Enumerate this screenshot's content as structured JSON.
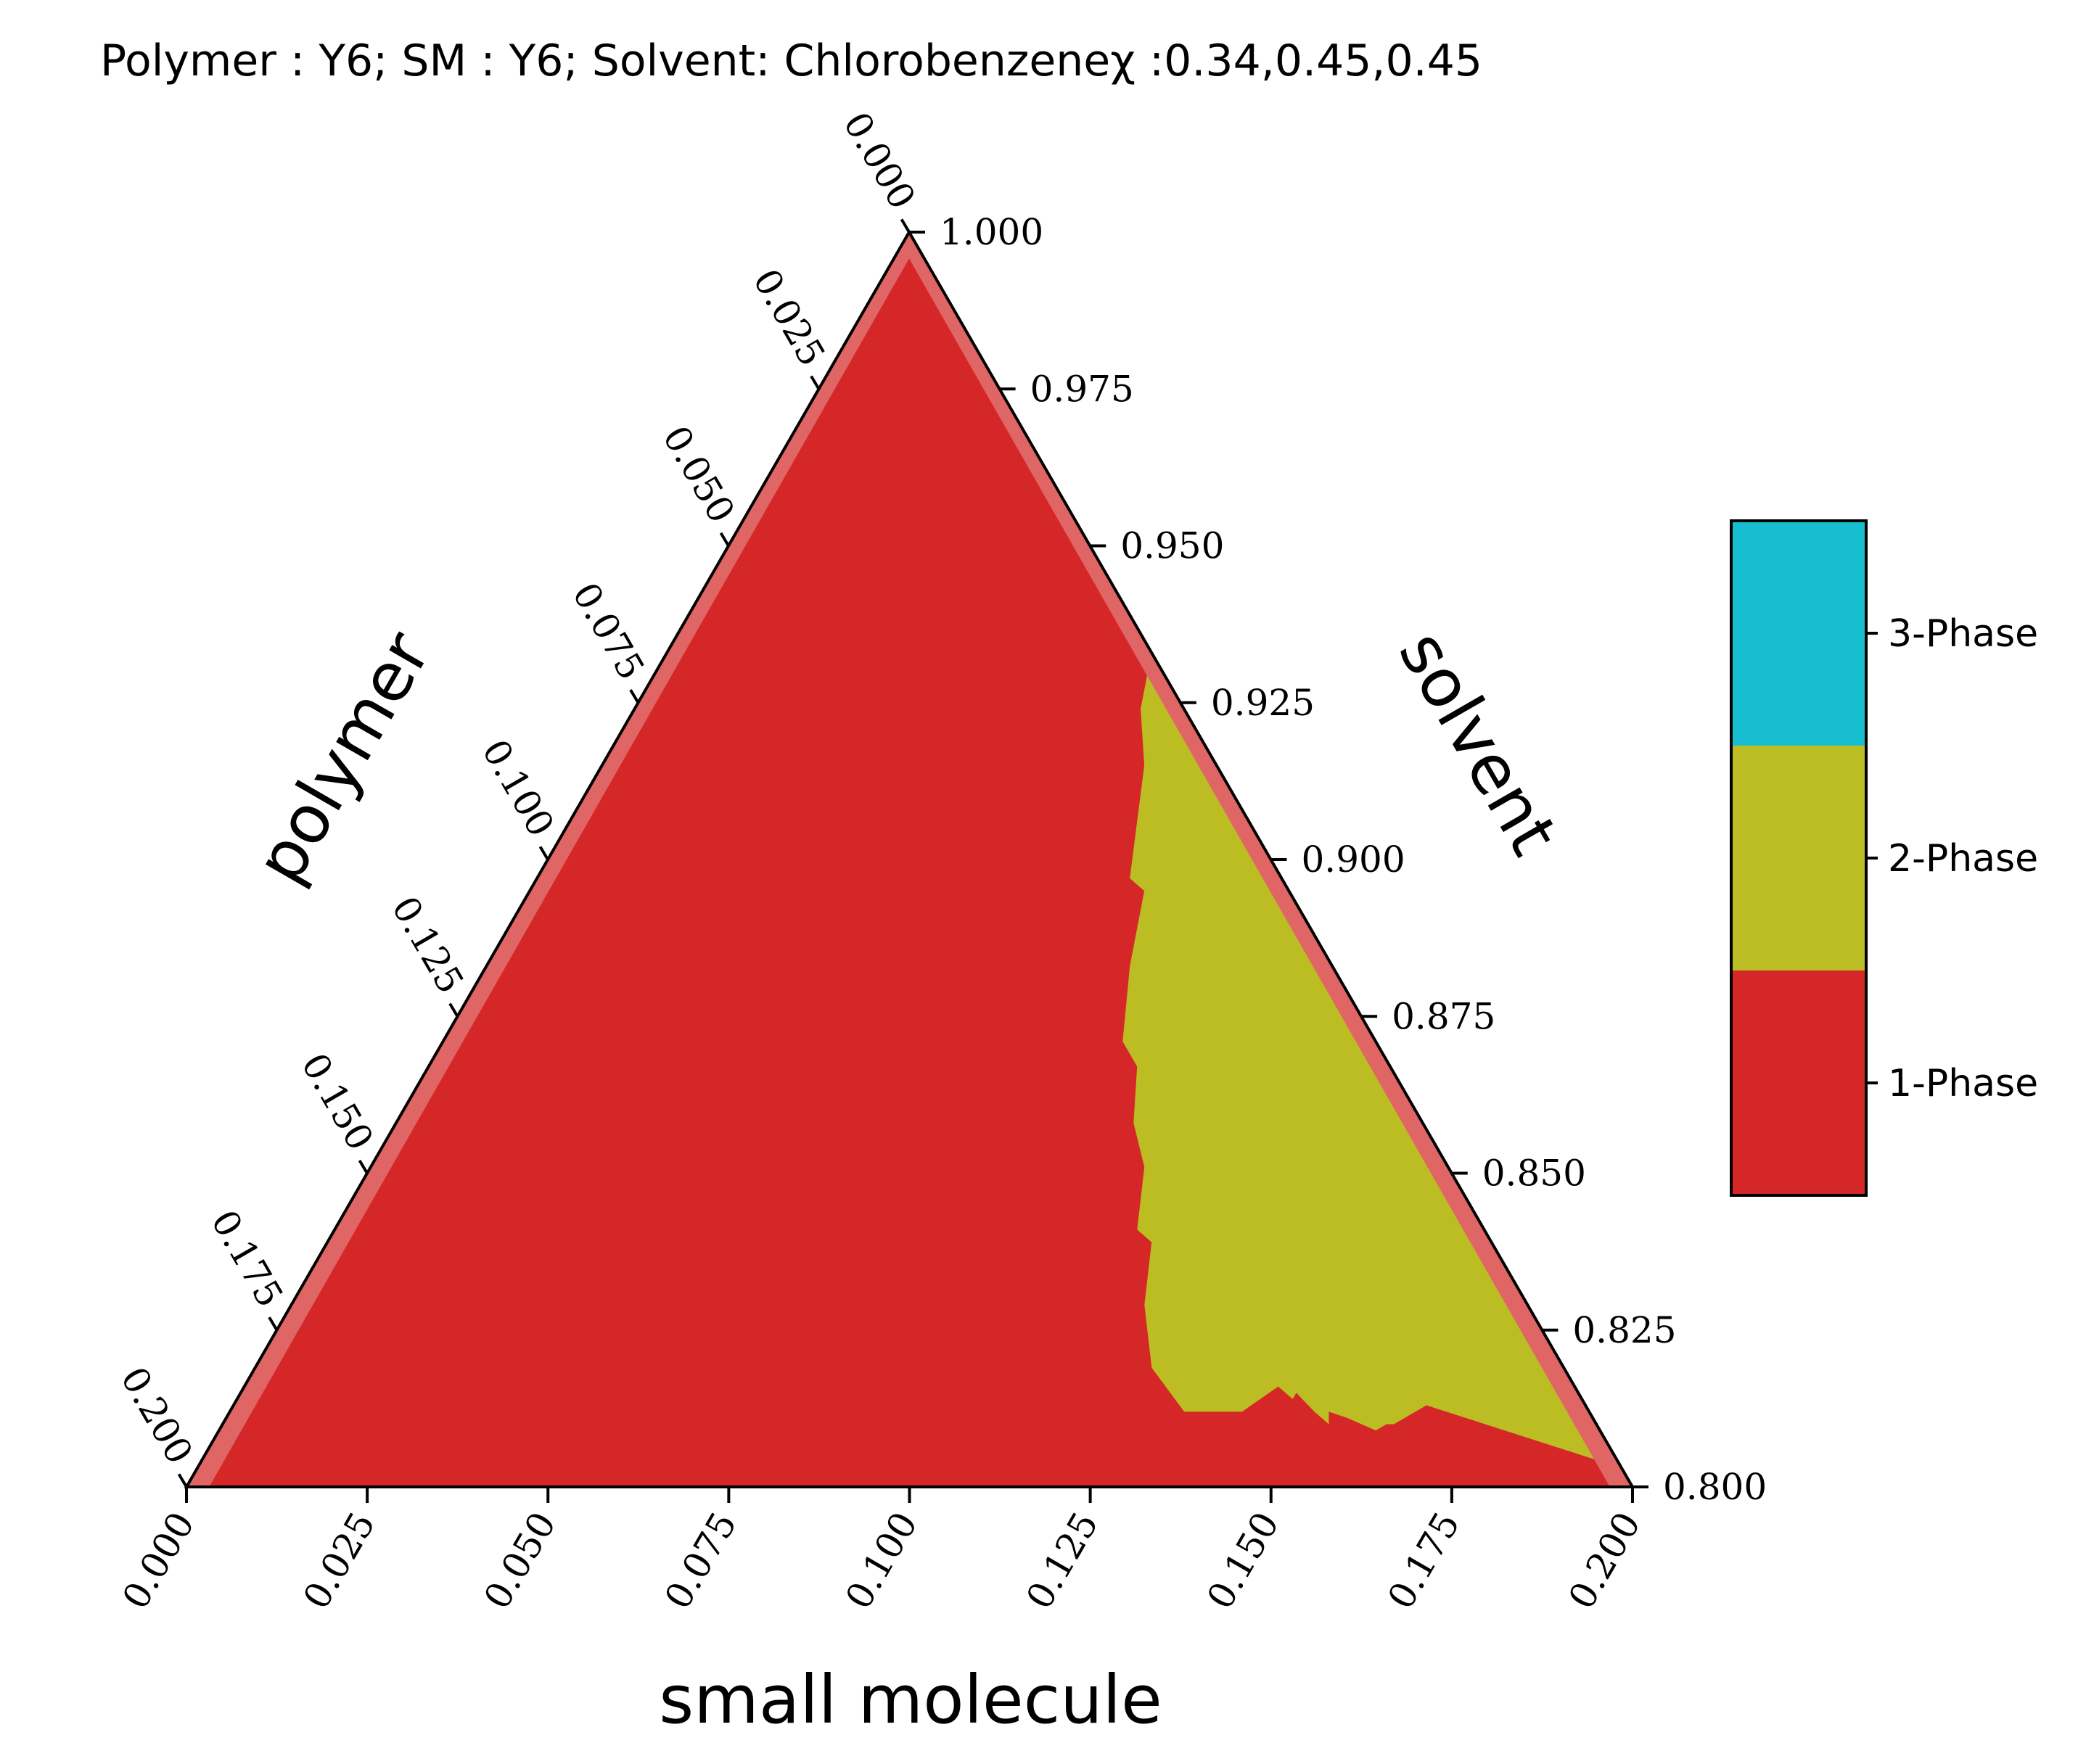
{
  "chart_data": {
    "type": "ternary-phase-diagram",
    "title": "Polymer : Y6; SM : Y6; Solvent: Chlorobenzeneχ :0.34,0.45,0.45",
    "axes": {
      "bottom": {
        "label": "small molecule",
        "range": [
          0.0,
          0.2
        ],
        "ticks": [
          "0.000",
          "0.025",
          "0.050",
          "0.075",
          "0.100",
          "0.125",
          "0.150",
          "0.175",
          "0.200"
        ]
      },
      "left": {
        "label": "polymer",
        "range": [
          0.0,
          0.2
        ],
        "ticks": [
          "0.000",
          "0.025",
          "0.050",
          "0.075",
          "0.100",
          "0.125",
          "0.150",
          "0.175",
          "0.200"
        ]
      },
      "right": {
        "label": "solvent",
        "range": [
          0.8,
          1.0
        ],
        "ticks": [
          "1.000",
          "0.975",
          "0.950",
          "0.925",
          "0.900",
          "0.875",
          "0.850",
          "0.825",
          "0.800"
        ]
      }
    },
    "legend": {
      "placement": "right",
      "entries": [
        {
          "label": "3-Phase",
          "color": "#17becf"
        },
        {
          "label": "2-Phase",
          "color": "#bcbd22"
        },
        {
          "label": "1-Phase",
          "color": "#d62728"
        }
      ]
    },
    "regions": [
      {
        "name": "1-Phase",
        "color": "#d62728",
        "fill": "entire-triangle"
      },
      {
        "name": "2-Phase",
        "color": "#bcbd22",
        "boundary_sm_polymer": [
          [
            0.067,
            0.0
          ],
          [
            0.07,
            0.006
          ],
          [
            0.075,
            0.01
          ],
          [
            0.082,
            0.021
          ],
          [
            0.085,
            0.02
          ],
          [
            0.089,
            0.028
          ],
          [
            0.094,
            0.035
          ],
          [
            0.098,
            0.035
          ],
          [
            0.102,
            0.04
          ],
          [
            0.107,
            0.042
          ],
          [
            0.111,
            0.048
          ],
          [
            0.114,
            0.047
          ],
          [
            0.118,
            0.053
          ],
          [
            0.124,
            0.057
          ],
          [
            0.132,
            0.056
          ],
          [
            0.14,
            0.048
          ],
          [
            0.143,
            0.041
          ],
          [
            0.146,
            0.04
          ],
          [
            0.146,
            0.039
          ],
          [
            0.15,
            0.038
          ],
          [
            0.153,
            0.037
          ],
          [
            0.152,
            0.036
          ],
          [
            0.155,
            0.034
          ],
          [
            0.16,
            0.031
          ],
          [
            0.161,
            0.029
          ],
          [
            0.162,
            0.028
          ],
          [
            0.165,
            0.022
          ],
          [
            0.197,
            0.0
          ]
        ]
      }
    ],
    "edge_color": "#e06666",
    "grid": false
  }
}
